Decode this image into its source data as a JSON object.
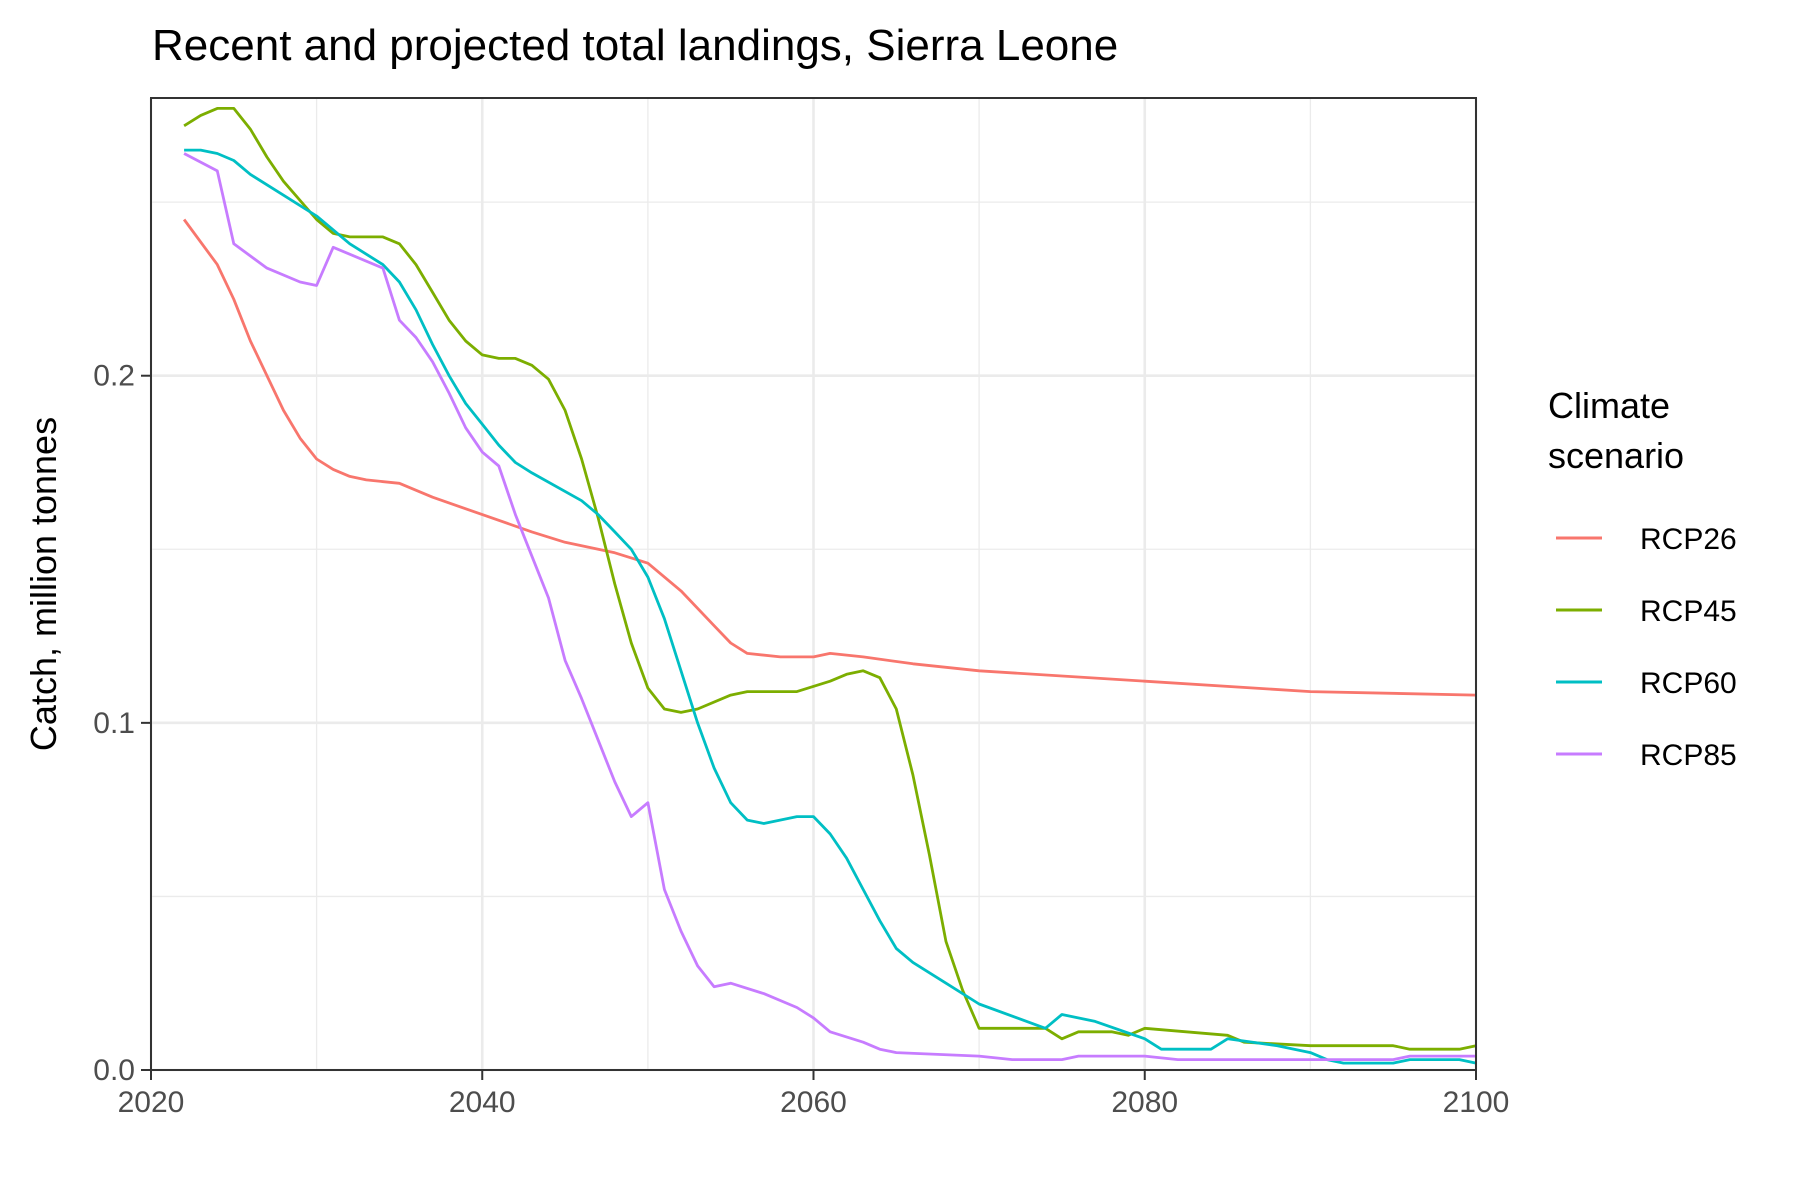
{
  "chart_data": {
    "type": "line",
    "title": "Recent and projected total landings, Sierra Leone",
    "xlabel": "",
    "ylabel": "Catch, million tonnes",
    "xlim": [
      2020,
      2100
    ],
    "ylim": [
      0.0,
      0.28
    ],
    "x_ticks": [
      2020,
      2040,
      2060,
      2080,
      2100
    ],
    "y_ticks": [
      0.0,
      0.1,
      0.2
    ],
    "y_tick_labels": [
      "0.0",
      "0.1",
      "0.2"
    ],
    "x_tick_labels": [
      "2020",
      "2040",
      "2060",
      "2080",
      "2100"
    ],
    "grid": true,
    "legend": {
      "title_lines": [
        "Climate",
        "scenario"
      ],
      "placement": "right"
    },
    "series": [
      {
        "name": "RCP26",
        "color": "#F8766D",
        "points": [
          [
            2022,
            0.245
          ],
          [
            2024,
            0.232
          ],
          [
            2025,
            0.222
          ],
          [
            2026,
            0.21
          ],
          [
            2028,
            0.19
          ],
          [
            2029,
            0.182
          ],
          [
            2030,
            0.176
          ],
          [
            2031,
            0.173
          ],
          [
            2032,
            0.171
          ],
          [
            2033,
            0.17
          ],
          [
            2035,
            0.169
          ],
          [
            2037,
            0.165
          ],
          [
            2040,
            0.16
          ],
          [
            2043,
            0.155
          ],
          [
            2045,
            0.152
          ],
          [
            2048,
            0.149
          ],
          [
            2050,
            0.146
          ],
          [
            2052,
            0.138
          ],
          [
            2054,
            0.128
          ],
          [
            2055,
            0.123
          ],
          [
            2056,
            0.12
          ],
          [
            2058,
            0.119
          ],
          [
            2060,
            0.119
          ],
          [
            2061,
            0.12
          ],
          [
            2063,
            0.119
          ],
          [
            2066,
            0.117
          ],
          [
            2070,
            0.115
          ],
          [
            2080,
            0.112
          ],
          [
            2090,
            0.109
          ],
          [
            2100,
            0.108
          ]
        ]
      },
      {
        "name": "RCP45",
        "color": "#7CAE00",
        "points": [
          [
            2022,
            0.272
          ],
          [
            2023,
            0.275
          ],
          [
            2024,
            0.277
          ],
          [
            2025,
            0.277
          ],
          [
            2026,
            0.271
          ],
          [
            2027,
            0.263
          ],
          [
            2028,
            0.256
          ],
          [
            2030,
            0.245
          ],
          [
            2031,
            0.241
          ],
          [
            2032,
            0.24
          ],
          [
            2034,
            0.24
          ],
          [
            2035,
            0.238
          ],
          [
            2036,
            0.232
          ],
          [
            2037,
            0.224
          ],
          [
            2038,
            0.216
          ],
          [
            2039,
            0.21
          ],
          [
            2040,
            0.206
          ],
          [
            2041,
            0.205
          ],
          [
            2042,
            0.205
          ],
          [
            2043,
            0.203
          ],
          [
            2044,
            0.199
          ],
          [
            2045,
            0.19
          ],
          [
            2046,
            0.176
          ],
          [
            2047,
            0.159
          ],
          [
            2048,
            0.14
          ],
          [
            2049,
            0.123
          ],
          [
            2050,
            0.11
          ],
          [
            2051,
            0.104
          ],
          [
            2052,
            0.103
          ],
          [
            2053,
            0.104
          ],
          [
            2055,
            0.108
          ],
          [
            2056,
            0.109
          ],
          [
            2059,
            0.109
          ],
          [
            2061,
            0.112
          ],
          [
            2062,
            0.114
          ],
          [
            2063,
            0.115
          ],
          [
            2064,
            0.113
          ],
          [
            2065,
            0.104
          ],
          [
            2066,
            0.085
          ],
          [
            2067,
            0.062
          ],
          [
            2068,
            0.037
          ],
          [
            2069,
            0.023
          ],
          [
            2070,
            0.012
          ],
          [
            2074,
            0.012
          ],
          [
            2075,
            0.009
          ],
          [
            2076,
            0.011
          ],
          [
            2078,
            0.011
          ],
          [
            2079,
            0.01
          ],
          [
            2080,
            0.012
          ],
          [
            2085,
            0.01
          ],
          [
            2086,
            0.008
          ],
          [
            2090,
            0.007
          ],
          [
            2095,
            0.007
          ],
          [
            2096,
            0.006
          ],
          [
            2099,
            0.006
          ],
          [
            2100,
            0.007
          ]
        ]
      },
      {
        "name": "RCP60",
        "color": "#00BFC4",
        "points": [
          [
            2022,
            0.265
          ],
          [
            2023,
            0.265
          ],
          [
            2024,
            0.264
          ],
          [
            2025,
            0.262
          ],
          [
            2026,
            0.258
          ],
          [
            2028,
            0.252
          ],
          [
            2030,
            0.246
          ],
          [
            2032,
            0.238
          ],
          [
            2034,
            0.232
          ],
          [
            2035,
            0.227
          ],
          [
            2036,
            0.219
          ],
          [
            2037,
            0.209
          ],
          [
            2038,
            0.2
          ],
          [
            2039,
            0.192
          ],
          [
            2040,
            0.186
          ],
          [
            2041,
            0.18
          ],
          [
            2042,
            0.175
          ],
          [
            2043,
            0.172
          ],
          [
            2046,
            0.164
          ],
          [
            2047,
            0.16
          ],
          [
            2048,
            0.155
          ],
          [
            2049,
            0.15
          ],
          [
            2050,
            0.142
          ],
          [
            2051,
            0.13
          ],
          [
            2052,
            0.115
          ],
          [
            2053,
            0.1
          ],
          [
            2054,
            0.087
          ],
          [
            2055,
            0.077
          ],
          [
            2056,
            0.072
          ],
          [
            2057,
            0.071
          ],
          [
            2059,
            0.073
          ],
          [
            2060,
            0.073
          ],
          [
            2061,
            0.068
          ],
          [
            2062,
            0.061
          ],
          [
            2063,
            0.052
          ],
          [
            2064,
            0.043
          ],
          [
            2065,
            0.035
          ],
          [
            2066,
            0.031
          ],
          [
            2068,
            0.025
          ],
          [
            2070,
            0.019
          ],
          [
            2074,
            0.012
          ],
          [
            2075,
            0.016
          ],
          [
            2077,
            0.014
          ],
          [
            2080,
            0.009
          ],
          [
            2081,
            0.006
          ],
          [
            2084,
            0.006
          ],
          [
            2085,
            0.009
          ],
          [
            2088,
            0.007
          ],
          [
            2090,
            0.005
          ],
          [
            2091,
            0.003
          ],
          [
            2092,
            0.002
          ],
          [
            2095,
            0.002
          ],
          [
            2096,
            0.003
          ],
          [
            2099,
            0.003
          ],
          [
            2100,
            0.002
          ]
        ]
      },
      {
        "name": "RCP85",
        "color": "#C77CFF",
        "points": [
          [
            2022,
            0.264
          ],
          [
            2024,
            0.259
          ],
          [
            2025,
            0.238
          ],
          [
            2027,
            0.231
          ],
          [
            2029,
            0.227
          ],
          [
            2030,
            0.226
          ],
          [
            2031,
            0.237
          ],
          [
            2034,
            0.231
          ],
          [
            2035,
            0.216
          ],
          [
            2036,
            0.211
          ],
          [
            2037,
            0.204
          ],
          [
            2038,
            0.195
          ],
          [
            2039,
            0.185
          ],
          [
            2040,
            0.178
          ],
          [
            2041,
            0.174
          ],
          [
            2042,
            0.16
          ],
          [
            2043,
            0.148
          ],
          [
            2044,
            0.136
          ],
          [
            2045,
            0.118
          ],
          [
            2046,
            0.107
          ],
          [
            2047,
            0.095
          ],
          [
            2048,
            0.083
          ],
          [
            2049,
            0.073
          ],
          [
            2050,
            0.077
          ],
          [
            2051,
            0.052
          ],
          [
            2052,
            0.04
          ],
          [
            2053,
            0.03
          ],
          [
            2054,
            0.024
          ],
          [
            2055,
            0.025
          ],
          [
            2057,
            0.022
          ],
          [
            2059,
            0.018
          ],
          [
            2060,
            0.015
          ],
          [
            2061,
            0.011
          ],
          [
            2063,
            0.008
          ],
          [
            2064,
            0.006
          ],
          [
            2065,
            0.005
          ],
          [
            2070,
            0.004
          ],
          [
            2072,
            0.003
          ],
          [
            2075,
            0.003
          ],
          [
            2076,
            0.004
          ],
          [
            2080,
            0.004
          ],
          [
            2082,
            0.003
          ],
          [
            2085,
            0.003
          ],
          [
            2090,
            0.003
          ],
          [
            2095,
            0.003
          ],
          [
            2096,
            0.004
          ],
          [
            2100,
            0.004
          ]
        ]
      }
    ]
  }
}
